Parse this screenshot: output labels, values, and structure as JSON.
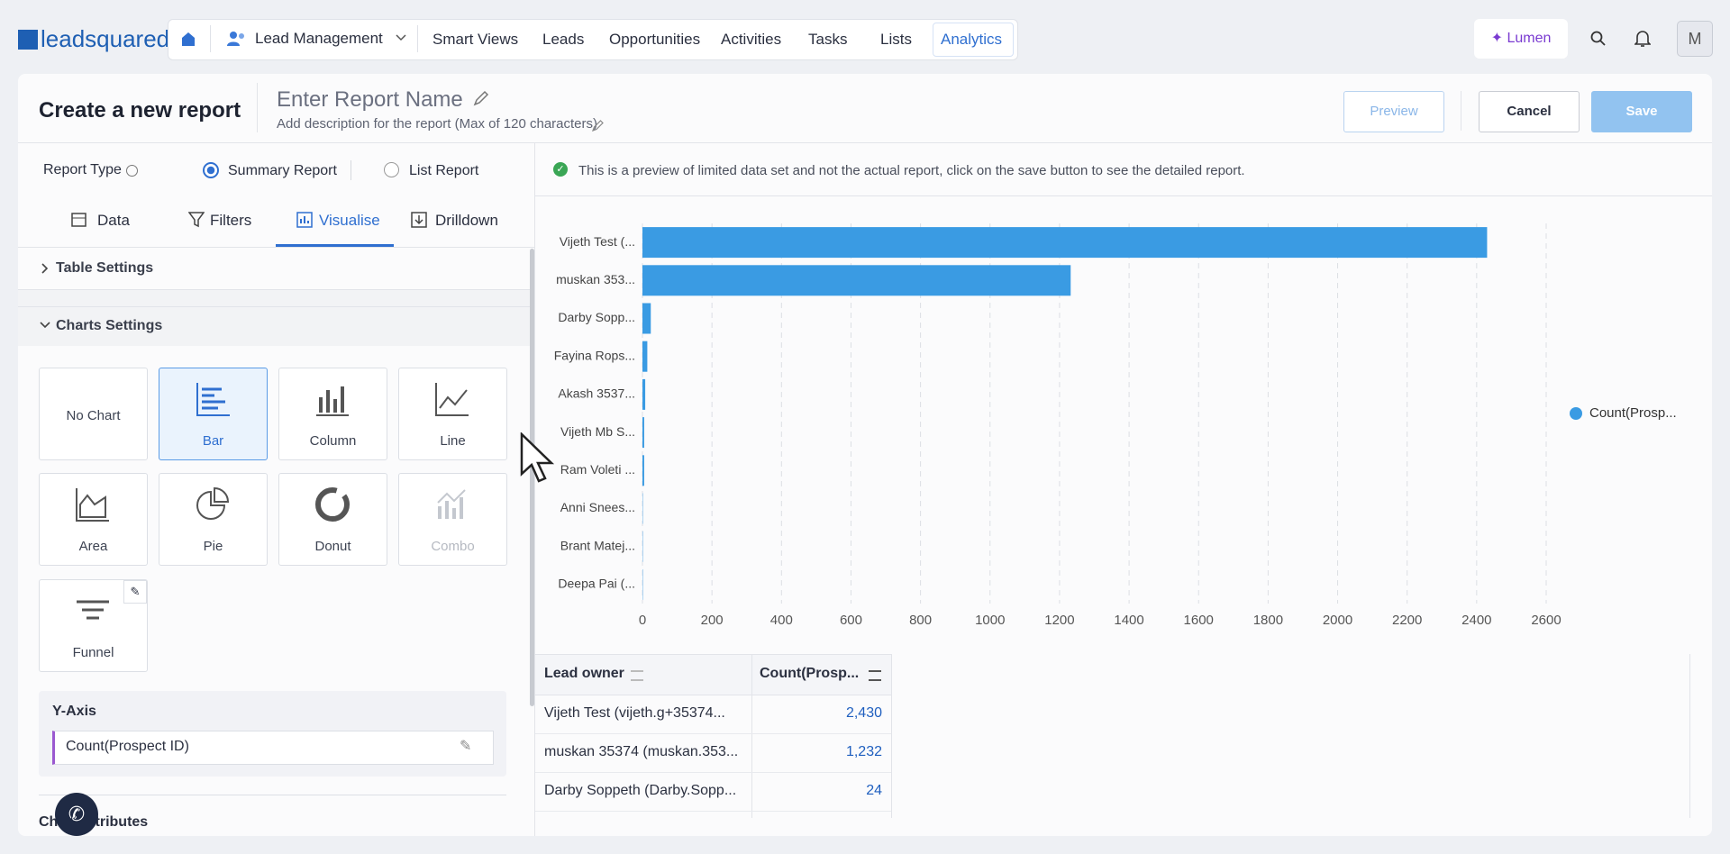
{
  "nav": {
    "logo": "leadsquared",
    "module": "Lead Management",
    "items": [
      "Smart Views",
      "Leads",
      "Opportunities",
      "Activities",
      "Tasks",
      "Lists",
      "Analytics"
    ],
    "lumen": "Lumen",
    "avatar": "M"
  },
  "header": {
    "title": "Create a new report",
    "report_name": "Enter Report Name",
    "description": "Add description for the report (Max of 120 characters)",
    "buttons": [
      "Preview",
      "Cancel",
      "Save"
    ]
  },
  "settings": {
    "report_type_label": "Report Type",
    "report_types": [
      "Summary Report",
      "List Report"
    ],
    "tabs": [
      "Data",
      "Filters",
      "Visualise",
      "Drilldown"
    ],
    "sections": [
      "Table Settings",
      "Charts Settings"
    ],
    "chart_types": [
      "No Chart",
      "Bar",
      "Column",
      "Line",
      "Area",
      "Pie",
      "Donut",
      "Combo",
      "Funnel"
    ],
    "y_axis_label": "Y-Axis",
    "y_axis_value": "Count(Prospect ID)",
    "chart_attributes": "Chart Attributes"
  },
  "preview": {
    "notice": "This is a preview of limited data set and not the actual report, click on the save button to see the detailed report.",
    "chart": {
      "type": "bar",
      "categories": [
        "Vijeth Test (...",
        "muskan 353...",
        "Darby Sopp...",
        "Fayina Rops...",
        "Akash 3537...",
        "Vijeth Mb S...",
        "Ram Voleti ...",
        "Anni Snees...",
        "Brant Matej...",
        "Deepa Pai (..."
      ],
      "values": [
        2430,
        1232,
        24,
        14,
        8,
        5,
        5,
        1,
        1,
        1
      ],
      "color": "#3a9be3",
      "xlim": [
        0,
        2600
      ],
      "xticks": [
        0,
        200,
        400,
        600,
        800,
        1000,
        1200,
        1400,
        1600,
        1800,
        2000,
        2200,
        2400,
        2600
      ],
      "grid": true,
      "legend": {
        "label": "Count(Prosp...",
        "position": "right"
      }
    },
    "table": {
      "columns": [
        "Lead owner",
        "Count(Prosp..."
      ],
      "rows": [
        [
          "Vijeth Test (vijeth.g+35374...",
          "2,430"
        ],
        [
          "muskan 35374 (muskan.353...",
          "1,232"
        ],
        [
          "Darby Soppeth (Darby.Sopp...",
          "24"
        ]
      ]
    }
  }
}
